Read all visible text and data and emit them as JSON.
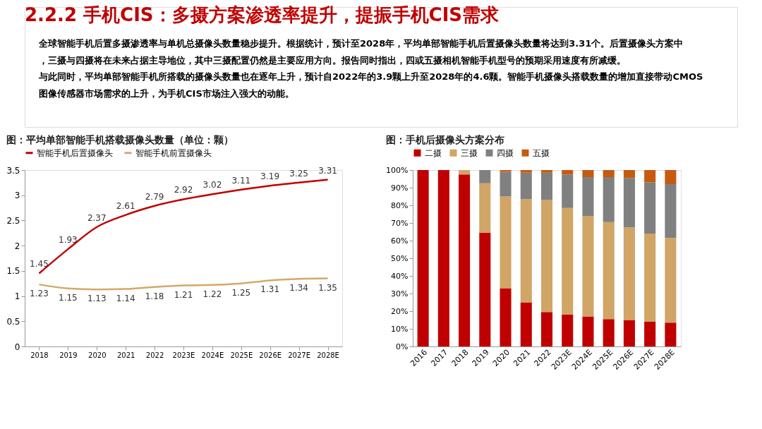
{
  "chart_data": [
    {
      "type": "other",
      "title": "2.2.2 手机CIS：多摄方案渗透率提升，提振手机CIS需求",
      "annotations": [
        "全球智能手机后置多摄渗透率与单机总摄像头数量稳步提升。根据统计，预计至2028年，平均单部智能手机后置摄像头数量将达到3.31个。后置摄像头方案中，三摄与四摄将在未来占据主导地位，其中三摄配置仍然是主要应用方向。报告同时指出，四或五摄相机智能手机型号的预期采用速度有所减缓。",
        "与此同时，平均单部智能手机所搭载的摄像头数量也在逐年上升，预计自2022年的3.9颗上升至2028年的4.6颗。智能手机摄像头搭载数量的增加直接带动CMOS图像传感器市场需求的上升，为手机CIS市场注入强大的动能。"
      ]
    },
    {
      "type": "line",
      "title": "图：平均单部智能手机搭载摄像头数量（单位：颗）",
      "categories": [
        "2018",
        "2019",
        "2020",
        "2021",
        "2022",
        "2023E",
        "2024E",
        "2025E",
        "2026E",
        "2027E",
        "2028E"
      ],
      "series": [
        {
          "name": "智能手机后置摄像头",
          "color": "#c00000",
          "values": [
            1.45,
            1.93,
            2.37,
            2.61,
            2.79,
            2.92,
            3.02,
            3.11,
            3.19,
            3.25,
            3.31
          ]
        },
        {
          "name": "智能手机前置摄像头",
          "color": "#d4a868",
          "values": [
            1.23,
            1.15,
            1.13,
            1.14,
            1.18,
            1.21,
            1.22,
            1.25,
            1.31,
            1.34,
            1.35
          ]
        }
      ],
      "ylim": [
        0,
        3.5
      ],
      "yticks": [
        0,
        0.5,
        1,
        1.5,
        2,
        2.5,
        3,
        3.5
      ],
      "data_labels": true,
      "legend": "top",
      "grid": false,
      "marker": "none"
    },
    {
      "type": "bar",
      "title": "图：手机后摄像头方案分布",
      "stacked": true,
      "categories": [
        "2016",
        "2017",
        "2018",
        "2019",
        "2020",
        "2021",
        "2022",
        "2023E",
        "2024E",
        "2025E",
        "2026E",
        "2027E",
        "2028E"
      ],
      "series": [
        {
          "name": "二摄",
          "color": "#c00000",
          "values": [
            100,
            100,
            97.5,
            64.5,
            33,
            25,
            19.5,
            18,
            17,
            15.5,
            15,
            14,
            13.5
          ]
        },
        {
          "name": "三摄",
          "color": "#d0a566",
          "values": [
            0,
            0,
            2.5,
            28,
            52,
            58.5,
            63.5,
            60.5,
            57,
            55,
            52.5,
            50,
            48
          ]
        },
        {
          "name": "四摄",
          "color": "#808080",
          "values": [
            0,
            0,
            0,
            7.5,
            14,
            15,
            15.5,
            19,
            22,
            25.5,
            28,
            29,
            30.5
          ]
        },
        {
          "name": "五摄",
          "color": "#c55a11",
          "values": [
            0,
            0,
            0,
            0,
            1,
            1.5,
            1.5,
            2.5,
            4,
            4,
            4.5,
            7,
            8
          ]
        }
      ],
      "ylim": [
        0,
        100
      ],
      "yticks": [
        {
          "value": 0,
          "label": "0%"
        },
        {
          "value": 10,
          "label": "10%"
        },
        {
          "value": 20,
          "label": "20%"
        },
        {
          "value": 30,
          "label": "30%"
        },
        {
          "value": 40,
          "label": "40%"
        },
        {
          "value": 50,
          "label": "50%"
        },
        {
          "value": 60,
          "label": "60%"
        },
        {
          "value": 70,
          "label": "70%"
        },
        {
          "value": 80,
          "label": "80%"
        },
        {
          "value": 90,
          "label": "90%"
        },
        {
          "value": 100,
          "label": "100%"
        }
      ],
      "legend": "top",
      "grid": false
    }
  ]
}
